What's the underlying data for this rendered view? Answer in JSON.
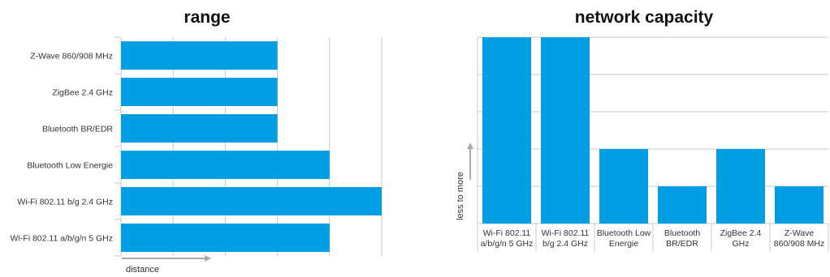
{
  "chart_data": [
    {
      "type": "bar",
      "orientation": "horizontal",
      "title": "range",
      "xlabel": "distance",
      "ylabel": "",
      "categories": [
        "Z-Wave 860/908 MHz",
        "ZigBee 2.4 GHz",
        "Bluetooth BR/EDR",
        "Bluetooth Low Energie",
        "Wi-Fi 802.11 b/g 2.4 GHz",
        "Wi-Fi 802.11 a/b/g/n 5 GHz"
      ],
      "values": [
        3,
        3,
        3,
        4,
        5,
        4
      ],
      "xlim": [
        0,
        5
      ],
      "grid": true,
      "bar_color": "#009ee3"
    },
    {
      "type": "bar",
      "orientation": "vertical",
      "title": "network capacity",
      "xlabel": "",
      "ylabel": "less to more",
      "categories": [
        [
          "Wi-Fi 802.11",
          "a/b/g/n 5 GHz"
        ],
        [
          "Wi-Fi 802.11",
          "b/g 2.4 GHz"
        ],
        [
          "Bluetooth Low",
          "Energie"
        ],
        [
          "Bluetooth",
          "BR/EDR"
        ],
        [
          "ZigBee 2.4",
          "GHz"
        ],
        [
          "Z-Wave",
          "860/908 MHz"
        ]
      ],
      "values": [
        5,
        5,
        2,
        1,
        2,
        1
      ],
      "ylim": [
        0,
        5
      ],
      "grid": true,
      "bar_color": "#009ee3"
    }
  ]
}
